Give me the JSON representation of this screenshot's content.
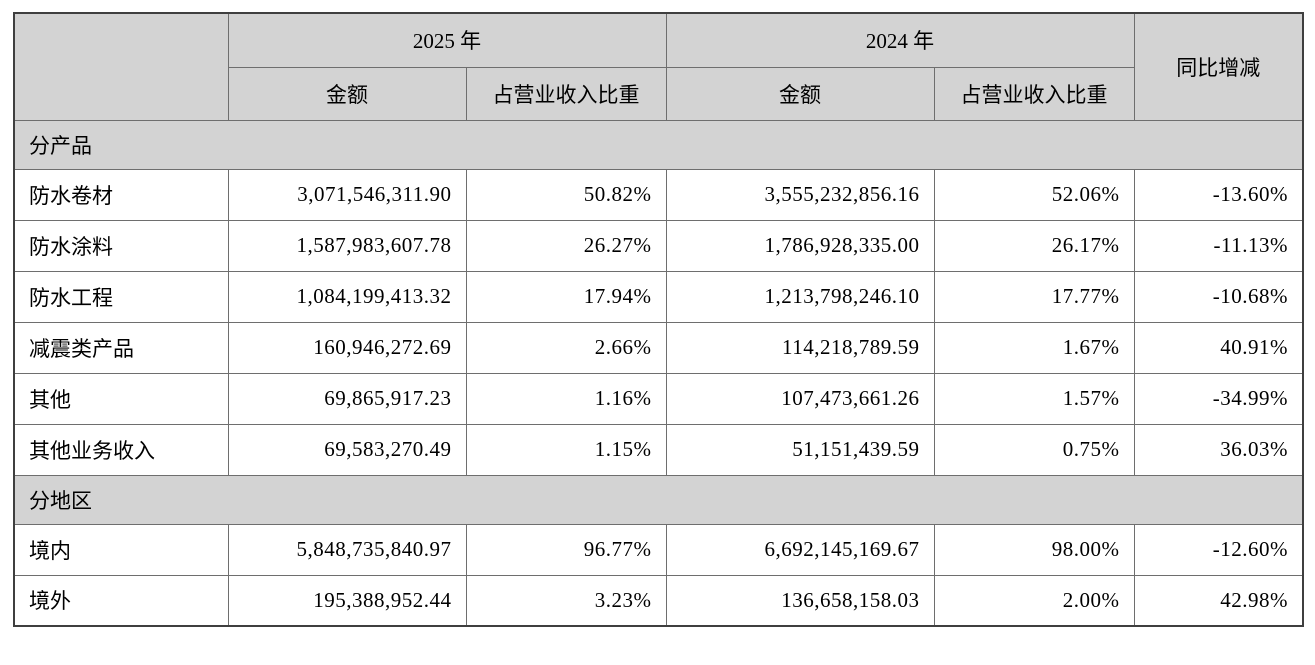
{
  "table": {
    "header": {
      "year_2025": "2025 年",
      "year_2024": "2024 年",
      "amount": "金额",
      "revenue_ratio": "占营业收入比重",
      "yoy_change": "同比增减"
    },
    "sections": [
      {
        "title": "分产品",
        "rows": [
          {
            "label": "防水卷材",
            "amount_2025": "3,071,546,311.90",
            "ratio_2025": "50.82%",
            "amount_2024": "3,555,232,856.16",
            "ratio_2024": "52.06%",
            "yoy": "-13.60%"
          },
          {
            "label": "防水涂料",
            "amount_2025": "1,587,983,607.78",
            "ratio_2025": "26.27%",
            "amount_2024": "1,786,928,335.00",
            "ratio_2024": "26.17%",
            "yoy": "-11.13%"
          },
          {
            "label": "防水工程",
            "amount_2025": "1,084,199,413.32",
            "ratio_2025": "17.94%",
            "amount_2024": "1,213,798,246.10",
            "ratio_2024": "17.77%",
            "yoy": "-10.68%"
          },
          {
            "label": "减震类产品",
            "amount_2025": "160,946,272.69",
            "ratio_2025": "2.66%",
            "amount_2024": "114,218,789.59",
            "ratio_2024": "1.67%",
            "yoy": "40.91%"
          },
          {
            "label": "其他",
            "amount_2025": "69,865,917.23",
            "ratio_2025": "1.16%",
            "amount_2024": "107,473,661.26",
            "ratio_2024": "1.57%",
            "yoy": "-34.99%"
          },
          {
            "label": "其他业务收入",
            "amount_2025": "69,583,270.49",
            "ratio_2025": "1.15%",
            "amount_2024": "51,151,439.59",
            "ratio_2024": "0.75%",
            "yoy": "36.03%"
          }
        ]
      },
      {
        "title": "分地区",
        "rows": [
          {
            "label": "境内",
            "amount_2025": "5,848,735,840.97",
            "ratio_2025": "96.77%",
            "amount_2024": "6,692,145,169.67",
            "ratio_2024": "98.00%",
            "yoy": "-12.60%"
          },
          {
            "label": "境外",
            "amount_2025": "195,388,952.44",
            "ratio_2025": "3.23%",
            "amount_2024": "136,658,158.03",
            "ratio_2024": "2.00%",
            "yoy": "42.98%"
          }
        ]
      }
    ],
    "colors": {
      "header_bg": "#d3d3d3",
      "inner_border": "#6e6e6e",
      "outer_border": "#3f3f3f",
      "text": "#000000"
    }
  }
}
